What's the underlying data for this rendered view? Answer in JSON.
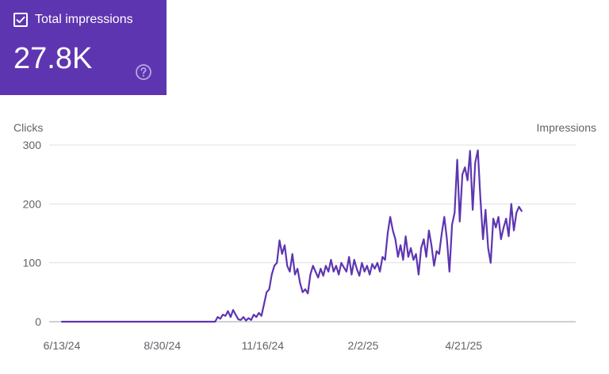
{
  "metric_card": {
    "label": "Total impressions",
    "value": "27.8K",
    "checked": true,
    "background_color": "#5e35b1",
    "icons": [
      "checkbox-checked-icon",
      "help-icon"
    ]
  },
  "chart_data": {
    "type": "line",
    "left_axis_title": "Clicks",
    "right_axis_title": "Impressions",
    "y_ticks": [
      "0",
      "100",
      "200",
      "300"
    ],
    "y_range": [
      0,
      300
    ],
    "x_tick_labels": [
      "6/13/24",
      "8/30/24",
      "11/16/24",
      "2/2/25",
      "4/21/25"
    ],
    "x_range": [
      "2024-06-13",
      "2025-07-17"
    ],
    "grid": true,
    "series": [
      {
        "color": "#5e35b1",
        "points": [
          [
            "2024-06-13",
            0
          ],
          [
            "2024-07-01",
            0
          ],
          [
            "2024-07-20",
            0
          ],
          [
            "2024-08-10",
            0
          ],
          [
            "2024-08-30",
            0
          ],
          [
            "2024-09-20",
            0
          ],
          [
            "2024-10-10",
            0
          ],
          [
            "2024-10-12",
            8
          ],
          [
            "2024-10-14",
            5
          ],
          [
            "2024-10-16",
            12
          ],
          [
            "2024-10-18",
            10
          ],
          [
            "2024-10-20",
            18
          ],
          [
            "2024-10-22",
            8
          ],
          [
            "2024-10-24",
            20
          ],
          [
            "2024-10-26",
            12
          ],
          [
            "2024-10-28",
            4
          ],
          [
            "2024-10-30",
            3
          ],
          [
            "2024-11-01",
            8
          ],
          [
            "2024-11-03",
            2
          ],
          [
            "2024-11-05",
            6
          ],
          [
            "2024-11-07",
            3
          ],
          [
            "2024-11-09",
            12
          ],
          [
            "2024-11-11",
            8
          ],
          [
            "2024-11-13",
            15
          ],
          [
            "2024-11-15",
            10
          ],
          [
            "2024-11-17",
            30
          ],
          [
            "2024-11-19",
            50
          ],
          [
            "2024-11-21",
            55
          ],
          [
            "2024-11-23",
            80
          ],
          [
            "2024-11-25",
            95
          ],
          [
            "2024-11-27",
            100
          ],
          [
            "2024-11-29",
            138
          ],
          [
            "2024-12-01",
            115
          ],
          [
            "2024-12-03",
            130
          ],
          [
            "2024-12-05",
            95
          ],
          [
            "2024-12-07",
            85
          ],
          [
            "2024-12-09",
            115
          ],
          [
            "2024-12-11",
            80
          ],
          [
            "2024-12-13",
            90
          ],
          [
            "2024-12-15",
            65
          ],
          [
            "2024-12-17",
            50
          ],
          [
            "2024-12-19",
            55
          ],
          [
            "2024-12-21",
            48
          ],
          [
            "2024-12-23",
            80
          ],
          [
            "2024-12-25",
            95
          ],
          [
            "2024-12-27",
            85
          ],
          [
            "2024-12-29",
            75
          ],
          [
            "2024-12-31",
            90
          ],
          [
            "2025-01-02",
            78
          ],
          [
            "2025-01-04",
            95
          ],
          [
            "2025-01-06",
            85
          ],
          [
            "2025-01-08",
            105
          ],
          [
            "2025-01-10",
            85
          ],
          [
            "2025-01-12",
            95
          ],
          [
            "2025-01-14",
            80
          ],
          [
            "2025-01-16",
            100
          ],
          [
            "2025-01-18",
            92
          ],
          [
            "2025-01-20",
            85
          ],
          [
            "2025-01-22",
            110
          ],
          [
            "2025-01-24",
            80
          ],
          [
            "2025-01-26",
            105
          ],
          [
            "2025-01-28",
            90
          ],
          [
            "2025-01-30",
            78
          ],
          [
            "2025-02-01",
            100
          ],
          [
            "2025-02-03",
            85
          ],
          [
            "2025-02-05",
            95
          ],
          [
            "2025-02-07",
            80
          ],
          [
            "2025-02-09",
            98
          ],
          [
            "2025-02-11",
            90
          ],
          [
            "2025-02-13",
            100
          ],
          [
            "2025-02-15",
            85
          ],
          [
            "2025-02-17",
            110
          ],
          [
            "2025-02-19",
            105
          ],
          [
            "2025-02-21",
            150
          ],
          [
            "2025-02-23",
            178
          ],
          [
            "2025-02-25",
            155
          ],
          [
            "2025-02-27",
            140
          ],
          [
            "2025-03-01",
            110
          ],
          [
            "2025-03-03",
            130
          ],
          [
            "2025-03-05",
            105
          ],
          [
            "2025-03-07",
            145
          ],
          [
            "2025-03-09",
            110
          ],
          [
            "2025-03-11",
            125
          ],
          [
            "2025-03-13",
            105
          ],
          [
            "2025-03-15",
            115
          ],
          [
            "2025-03-17",
            80
          ],
          [
            "2025-03-19",
            125
          ],
          [
            "2025-03-21",
            140
          ],
          [
            "2025-03-23",
            110
          ],
          [
            "2025-03-25",
            155
          ],
          [
            "2025-03-27",
            130
          ],
          [
            "2025-03-29",
            95
          ],
          [
            "2025-03-31",
            120
          ],
          [
            "2025-04-02",
            115
          ],
          [
            "2025-04-04",
            150
          ],
          [
            "2025-04-06",
            178
          ],
          [
            "2025-04-08",
            140
          ],
          [
            "2025-04-10",
            85
          ],
          [
            "2025-04-12",
            165
          ],
          [
            "2025-04-14",
            185
          ],
          [
            "2025-04-16",
            275
          ],
          [
            "2025-04-18",
            170
          ],
          [
            "2025-04-20",
            250
          ],
          [
            "2025-04-22",
            262
          ],
          [
            "2025-04-24",
            240
          ],
          [
            "2025-04-26",
            290
          ],
          [
            "2025-04-28",
            190
          ],
          [
            "2025-04-30",
            270
          ],
          [
            "2025-05-02",
            291
          ],
          [
            "2025-05-04",
            210
          ],
          [
            "2025-05-06",
            140
          ],
          [
            "2025-05-08",
            190
          ],
          [
            "2025-05-10",
            125
          ],
          [
            "2025-05-12",
            100
          ],
          [
            "2025-05-14",
            175
          ],
          [
            "2025-05-16",
            160
          ],
          [
            "2025-05-18",
            178
          ],
          [
            "2025-05-20",
            140
          ],
          [
            "2025-05-22",
            160
          ],
          [
            "2025-05-24",
            175
          ],
          [
            "2025-05-26",
            145
          ],
          [
            "2025-05-28",
            200
          ],
          [
            "2025-05-30",
            155
          ],
          [
            "2025-06-01",
            185
          ],
          [
            "2025-06-03",
            195
          ],
          [
            "2025-06-05",
            188
          ]
        ]
      }
    ]
  }
}
